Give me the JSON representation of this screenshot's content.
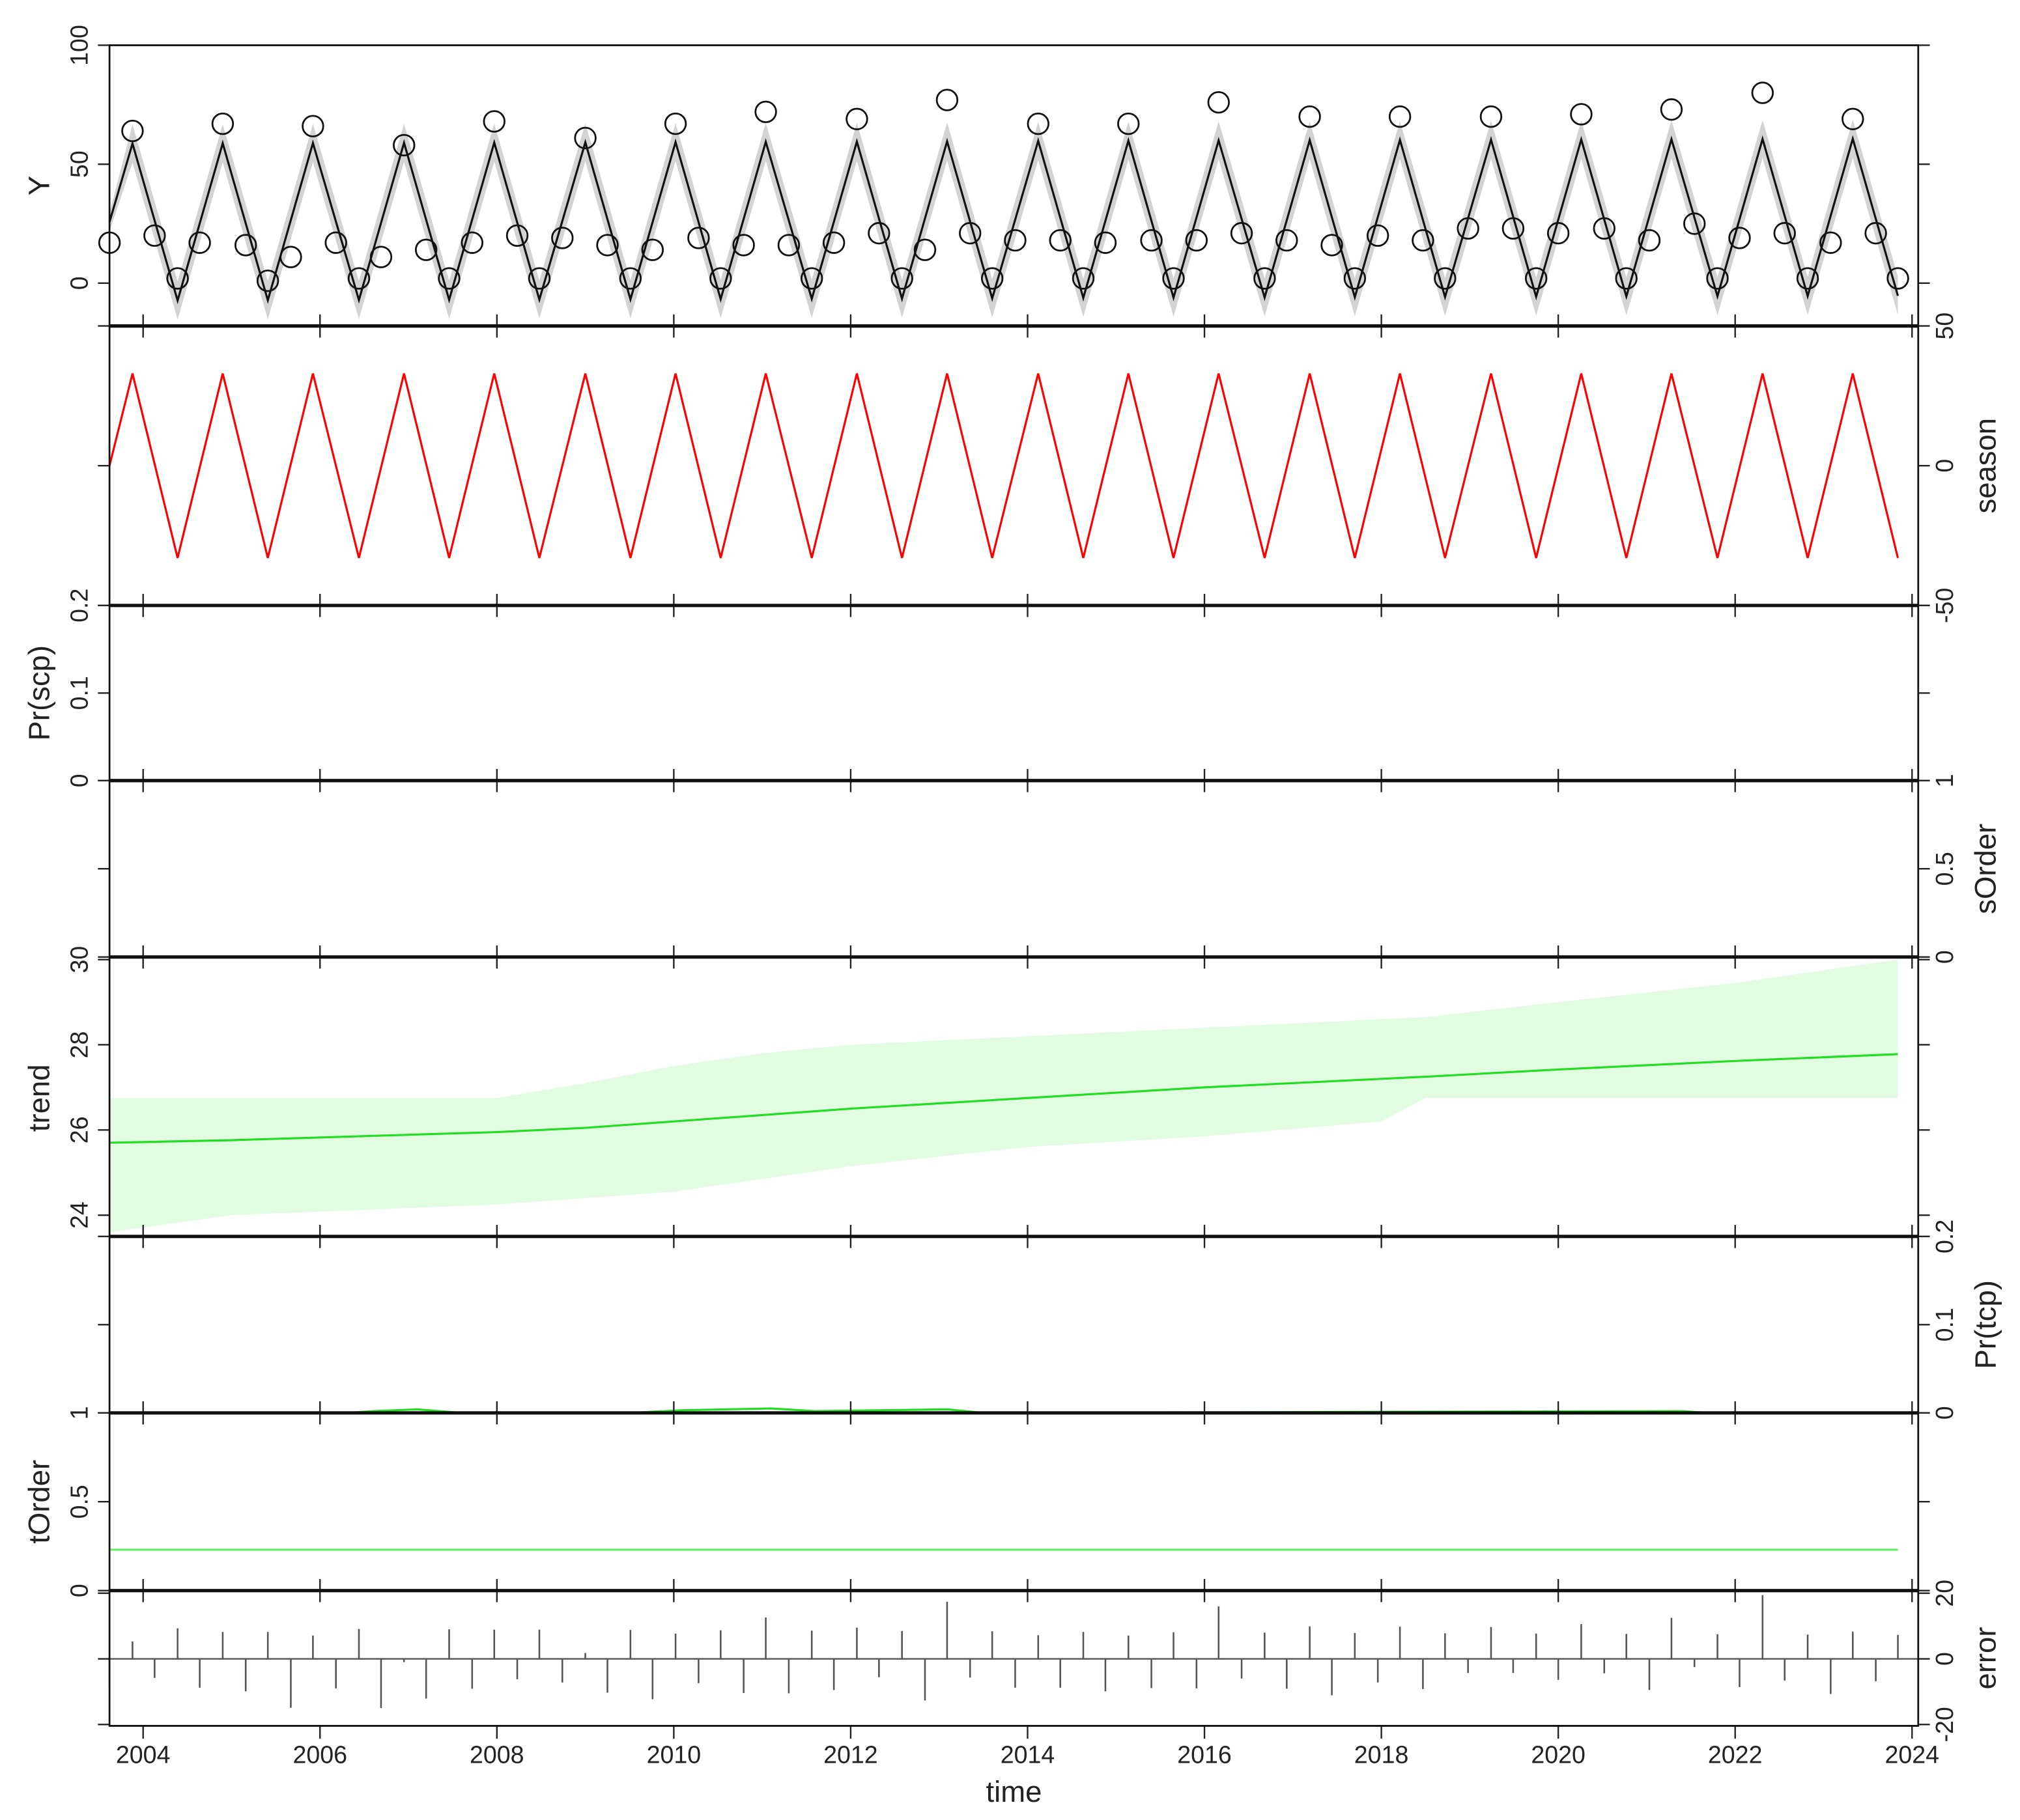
{
  "chart_data": [
    {
      "type": "line",
      "ylabel": "Y",
      "ytick_side": "left",
      "xlim": [
        2003.62,
        2024.07
      ],
      "ylim": [
        -18,
        100
      ],
      "yticks": [
        0,
        50,
        100
      ],
      "series": [
        {
          "type": "band",
          "color": "#d3d3d3",
          "x": [
            2003.62,
            2003.88,
            2004.39,
            2004.9,
            2005.41,
            2005.92,
            2006.44,
            2006.95,
            2007.46,
            2007.97,
            2008.48,
            2009.0,
            2009.51,
            2010.02,
            2010.53,
            2011.04,
            2011.56,
            2012.07,
            2012.58,
            2013.09,
            2013.6,
            2014.12,
            2014.63,
            2015.14,
            2015.65,
            2016.16,
            2016.68,
            2017.19,
            2017.7,
            2018.21,
            2018.72,
            2019.24,
            2019.75,
            2020.26,
            2020.77,
            2021.28,
            2021.8,
            2022.31,
            2022.82,
            2023.33,
            2023.84
          ],
          "lower": [
            21.7,
            50.7,
            -15.3,
            50.8,
            -15.2,
            50.9,
            -15.1,
            51.0,
            -15.0,
            51.1,
            -14.9,
            51.2,
            -14.8,
            51.3,
            -14.7,
            51.4,
            -14.6,
            51.5,
            -14.5,
            51.6,
            -14.4,
            51.8,
            -14.2,
            51.9,
            -14.1,
            52.0,
            -14.0,
            52.1,
            -13.9,
            52.2,
            -13.8,
            52.3,
            -13.7,
            52.4,
            -13.6,
            52.5,
            -13.5,
            52.6,
            -13.4,
            52.7,
            -13.3
          ],
          "upper": [
            29.7,
            66.7,
            0.7,
            66.8,
            0.8,
            66.9,
            0.9,
            67.0,
            1.0,
            67.1,
            1.1,
            67.2,
            1.2,
            67.3,
            1.3,
            67.4,
            1.4,
            67.5,
            1.5,
            67.6,
            1.6,
            67.8,
            1.8,
            67.9,
            1.9,
            68.0,
            2.0,
            68.1,
            2.1,
            68.2,
            2.2,
            68.3,
            2.3,
            68.4,
            2.4,
            68.5,
            2.5,
            68.6,
            2.6,
            68.7,
            2.7
          ]
        },
        {
          "type": "line",
          "color": "#111111",
          "x": [
            2003.62,
            2003.88,
            2004.39,
            2004.9,
            2005.41,
            2005.92,
            2006.44,
            2006.95,
            2007.46,
            2007.97,
            2008.48,
            2009.0,
            2009.51,
            2010.02,
            2010.53,
            2011.04,
            2011.56,
            2012.07,
            2012.58,
            2013.09,
            2013.6,
            2014.12,
            2014.63,
            2015.14,
            2015.65,
            2016.16,
            2016.68,
            2017.19,
            2017.7,
            2018.21,
            2018.72,
            2019.24,
            2019.75,
            2020.26,
            2020.77,
            2021.28,
            2021.8,
            2022.31,
            2022.82,
            2023.33,
            2023.84
          ],
          "values": [
            25.7,
            58.7,
            -7.3,
            58.8,
            -7.2,
            58.9,
            -7.1,
            59.0,
            -7.0,
            59.1,
            -6.9,
            59.2,
            -6.8,
            59.3,
            -6.7,
            59.4,
            -6.6,
            59.5,
            -6.5,
            59.6,
            -6.4,
            59.8,
            -6.2,
            59.9,
            -6.1,
            60.0,
            -6.0,
            60.1,
            -5.9,
            60.2,
            -5.8,
            60.3,
            -5.7,
            60.4,
            -5.6,
            60.5,
            -5.5,
            60.6,
            -5.4,
            60.7,
            -5.3
          ]
        },
        {
          "type": "scatter",
          "color": "#111111",
          "x": [
            2003.62,
            2003.88,
            2004.13,
            2004.39,
            2004.64,
            2004.9,
            2005.16,
            2005.41,
            2005.67,
            2005.92,
            2006.18,
            2006.44,
            2006.69,
            2006.95,
            2007.2,
            2007.46,
            2007.72,
            2007.97,
            2008.23,
            2008.48,
            2008.74,
            2009.0,
            2009.25,
            2009.51,
            2009.76,
            2010.02,
            2010.28,
            2010.53,
            2010.79,
            2011.04,
            2011.3,
            2011.56,
            2011.81,
            2012.07,
            2012.32,
            2012.58,
            2012.84,
            2013.09,
            2013.35,
            2013.6,
            2013.86,
            2014.12,
            2014.37,
            2014.63,
            2014.88,
            2015.14,
            2015.4,
            2015.65,
            2015.91,
            2016.16,
            2016.42,
            2016.68,
            2016.93,
            2017.19,
            2017.44,
            2017.7,
            2017.96,
            2018.21,
            2018.47,
            2018.72,
            2018.98,
            2019.24,
            2019.49,
            2019.75,
            2020.0,
            2020.26,
            2020.52,
            2020.77,
            2021.03,
            2021.28,
            2021.54,
            2021.8,
            2022.05,
            2022.31,
            2022.56,
            2022.82,
            2023.08,
            2023.33,
            2023.59,
            2023.84
          ],
          "values": [
            17,
            64,
            20,
            2,
            17,
            67,
            16,
            1,
            11,
            66,
            17,
            2,
            11,
            58,
            14,
            2,
            17,
            68,
            20,
            2,
            19,
            61,
            16,
            2,
            14,
            67,
            19,
            2,
            16,
            72,
            16,
            2,
            17,
            69,
            21,
            2,
            14,
            77,
            21,
            2,
            18,
            67,
            18,
            2,
            17,
            67,
            18,
            2,
            18,
            76,
            21,
            2,
            18,
            70,
            16,
            2,
            20,
            70,
            18,
            2,
            23,
            70,
            23,
            2,
            21,
            71,
            23,
            2,
            18,
            73,
            25,
            2,
            19,
            80,
            21,
            2,
            17,
            69,
            21,
            2
          ]
        }
      ]
    },
    {
      "type": "line",
      "ylabel": "season",
      "ytick_side": "right",
      "xlim": [
        2003.62,
        2024.07
      ],
      "ylim": [
        -50,
        50
      ],
      "yticks": [
        -50,
        0,
        50
      ],
      "series": [
        {
          "type": "line",
          "color": "#ff0000",
          "x": [
            2003.62,
            2003.88,
            2004.39,
            2004.9,
            2005.41,
            2005.92,
            2006.44,
            2006.95,
            2007.46,
            2007.97,
            2008.48,
            2009.0,
            2009.51,
            2010.02,
            2010.53,
            2011.04,
            2011.56,
            2012.07,
            2012.58,
            2013.09,
            2013.6,
            2014.12,
            2014.63,
            2015.14,
            2015.65,
            2016.16,
            2016.68,
            2017.19,
            2017.7,
            2018.21,
            2018.72,
            2019.24,
            2019.75,
            2020.26,
            2020.77,
            2021.28,
            2021.8,
            2022.31,
            2022.82,
            2023.33,
            2023.84
          ],
          "values": [
            0,
            33,
            -33,
            33,
            -33,
            33,
            -33,
            33,
            -33,
            33,
            -33,
            33,
            -33,
            33,
            -33,
            33,
            -33,
            33,
            -33,
            33,
            -33,
            33,
            -33,
            33,
            -33,
            33,
            -33,
            33,
            -33,
            33,
            -33,
            33,
            -33,
            33,
            -33,
            33,
            -33,
            33,
            -33,
            33,
            -33
          ]
        }
      ]
    },
    {
      "type": "line",
      "ylabel": "Pr(scp)",
      "ytick_side": "left",
      "xlim": [
        2003.62,
        2024.07
      ],
      "ylim": [
        0,
        0.2
      ],
      "yticks": [
        0,
        0.1,
        0.2
      ],
      "series": [
        {
          "type": "line",
          "color": "#ff0000",
          "x": [
            2003.62,
            2023.84
          ],
          "values": [
            0,
            0
          ]
        }
      ]
    },
    {
      "type": "line",
      "ylabel": "sOrder",
      "ytick_side": "right",
      "xlim": [
        2003.62,
        2024.07
      ],
      "ylim": [
        0,
        1
      ],
      "yticks": [
        0,
        0.5,
        1
      ],
      "series": []
    },
    {
      "type": "line",
      "ylabel": "trend",
      "ytick_side": "left",
      "xlim": [
        2003.62,
        2024.07
      ],
      "ylim": [
        23.5,
        30
      ],
      "yticks": [
        24,
        26,
        28,
        30
      ],
      "series": [
        {
          "type": "band",
          "color": "#e2fce2",
          "x": [
            2003.62,
            2005,
            2008,
            2009,
            2010,
            2011,
            2012,
            2014,
            2016,
            2018,
            2018.5,
            2020,
            2022,
            2023.84
          ],
          "lower": [
            23.6,
            24.0,
            24.25,
            24.4,
            24.55,
            24.85,
            25.15,
            25.6,
            25.85,
            26.2,
            26.75,
            26.75,
            26.75,
            26.75
          ],
          "upper": [
            26.75,
            26.75,
            26.75,
            27.1,
            27.5,
            27.8,
            28.0,
            28.2,
            28.4,
            28.6,
            28.65,
            29.0,
            29.45,
            30.0
          ]
        },
        {
          "type": "line",
          "color": "#22dd22",
          "x": [
            2003.62,
            2005,
            2008,
            2009,
            2010,
            2011,
            2012,
            2014,
            2016,
            2018,
            2018.5,
            2020,
            2022,
            2023.84
          ],
          "values": [
            25.7,
            25.76,
            25.95,
            26.05,
            26.2,
            26.35,
            26.5,
            26.75,
            27.0,
            27.2,
            27.25,
            27.42,
            27.62,
            27.78
          ]
        }
      ]
    },
    {
      "type": "line",
      "ylabel": "Pr(tcp)",
      "ytick_side": "right",
      "xlim": [
        2003.62,
        2024.07
      ],
      "ylim": [
        0,
        0.2
      ],
      "yticks": [
        0,
        0.1,
        0.2
      ],
      "series": [
        {
          "type": "line",
          "color": "#22dd22",
          "x": [
            2003.62,
            2006.3,
            2006.6,
            2007.1,
            2007.6,
            2009.5,
            2010.1,
            2011.1,
            2011.6,
            2013.1,
            2013.5,
            2021.4,
            2021.7,
            2023.84
          ],
          "values": [
            0,
            0,
            0.002,
            0.004,
            0,
            0,
            0.003,
            0.005,
            0.002,
            0.004,
            0,
            0.002,
            0,
            0
          ]
        }
      ]
    },
    {
      "type": "line",
      "ylabel": "tOrder",
      "ytick_side": "left",
      "xlim": [
        2003.62,
        2024.07
      ],
      "ylim": [
        0,
        1
      ],
      "yticks": [
        0,
        0.5,
        1
      ],
      "series": [
        {
          "type": "line",
          "color": "#66ee66",
          "x": [
            2003.62,
            2023.84
          ],
          "values": [
            0.23,
            0.23
          ]
        }
      ]
    },
    {
      "type": "stem",
      "ylabel": "error",
      "ytick_side": "right",
      "xlabel": "time",
      "xlim": [
        2003.62,
        2024.07
      ],
      "ylim": [
        -20.4,
        20.8
      ],
      "yticks": [
        -20,
        0,
        20
      ],
      "xticks": [
        2004,
        2006,
        2008,
        2010,
        2012,
        2014,
        2016,
        2018,
        2020,
        2022,
        2024
      ],
      "series": [
        {
          "type": "stem",
          "color": "#555555",
          "x": [
            2003.62,
            2003.88,
            2004.13,
            2004.39,
            2004.64,
            2004.9,
            2005.16,
            2005.41,
            2005.67,
            2005.92,
            2006.18,
            2006.44,
            2006.69,
            2006.95,
            2007.2,
            2007.46,
            2007.72,
            2007.97,
            2008.23,
            2008.48,
            2008.74,
            2009.0,
            2009.25,
            2009.51,
            2009.76,
            2010.02,
            2010.28,
            2010.53,
            2010.79,
            2011.04,
            2011.3,
            2011.56,
            2011.81,
            2012.07,
            2012.32,
            2012.58,
            2012.84,
            2013.09,
            2013.35,
            2013.6,
            2013.86,
            2014.12,
            2014.37,
            2014.63,
            2014.88,
            2015.14,
            2015.4,
            2015.65,
            2015.91,
            2016.16,
            2016.42,
            2016.68,
            2016.93,
            2017.19,
            2017.44,
            2017.7,
            2017.96,
            2018.21,
            2018.47,
            2018.72,
            2018.98,
            2019.24,
            2019.49,
            2019.75,
            2020.0,
            2020.26,
            2020.52,
            2020.77,
            2021.03,
            2021.28,
            2021.54,
            2021.8,
            2022.05,
            2022.31,
            2022.56,
            2022.82,
            2023.08,
            2023.33,
            2023.59,
            2023.84
          ],
          "values": [
            -8.7,
            5.3,
            -5.8,
            9.3,
            -8.8,
            8.2,
            -9.9,
            8.2,
            -14.9,
            7.1,
            -9,
            9.1,
            -15,
            -1,
            -12.1,
            9.0,
            -9.1,
            8.9,
            -6.2,
            8.9,
            -7.2,
            1.8,
            -10.3,
            8.8,
            -12.3,
            7.7,
            -7.4,
            8.7,
            -10.4,
            12.6,
            -10.5,
            8.6,
            -9.5,
            9.5,
            -5.6,
            8.5,
            -12.7,
            17.4,
            -5.7,
            8.4,
            -8.8,
            7.2,
            -8.8,
            8.2,
            -9.9,
            7.1,
            -8.9,
            8.1,
            -9,
            16,
            -6,
            8.0,
            -9.1,
            9.9,
            -11.1,
            7.9,
            -7.2,
            9.8,
            -9.2,
            7.8,
            -4.3,
            9.7,
            -4.3,
            7.7,
            -6.4,
            10.6,
            -4.4,
            7.6,
            -9.5,
            12.5,
            -2.5,
            7.5,
            -8.6,
            19.4,
            -6.6,
            7.4,
            -10.7,
            8.3,
            -6.8,
            7.3
          ]
        }
      ]
    }
  ]
}
